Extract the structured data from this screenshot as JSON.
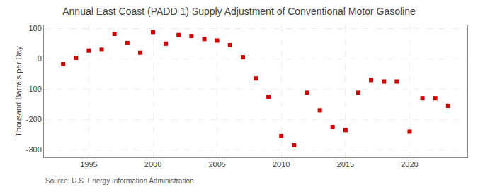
{
  "chart_data": {
    "type": "scatter",
    "title": "Annual East Coast (PADD 1) Supply Adjustment of Conventional Motor Gasoline",
    "ylabel": "Thousand Barrels per Day",
    "annotations": [
      "Source: U.S. Energy Information Administration"
    ],
    "x": [
      1993,
      1994,
      1995,
      1996,
      1997,
      1998,
      1999,
      2000,
      2001,
      2002,
      2003,
      2004,
      2005,
      2006,
      2007,
      2008,
      2009,
      2010,
      2011,
      2012,
      2013,
      2014,
      2015,
      2016,
      2017,
      2018,
      2019,
      2020,
      2021,
      2022,
      2023
    ],
    "values": [
      -18,
      3,
      27,
      30,
      82,
      52,
      20,
      88,
      50,
      78,
      75,
      65,
      60,
      45,
      5,
      -65,
      -125,
      -255,
      -285,
      -112,
      -170,
      -225,
      -235,
      -112,
      -70,
      -75,
      -75,
      -240,
      -130,
      -130,
      -155
    ],
    "color": "#cc0000",
    "marker": "square",
    "xlim": [
      1991.5,
      2024.5
    ],
    "xticks": [
      1995,
      2000,
      2005,
      2010,
      2015,
      2020
    ],
    "ylim": [
      -325,
      110
    ],
    "yticks": [
      -300,
      -200,
      -100,
      0,
      100
    ],
    "grid": true
  }
}
